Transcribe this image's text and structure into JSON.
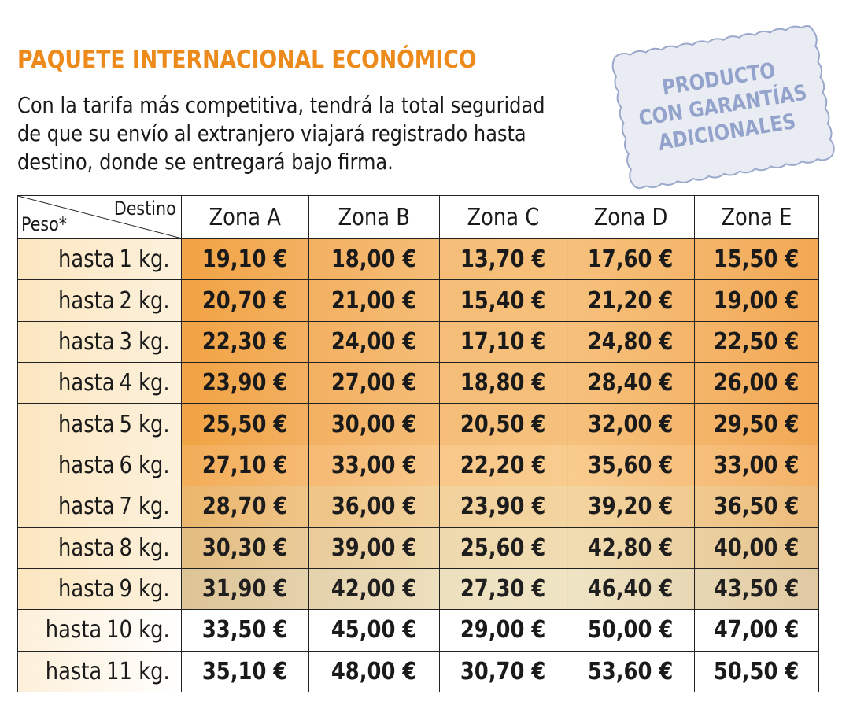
{
  "title": "PAQUETE INTERNACIONAL ECONÓMICO",
  "intro_lines": [
    "Con la tarifa más competitiva, tendrá la total seguridad",
    "de que su envío al extranjero viajará registrado hasta",
    "destino, donde se entregará bajo firma."
  ],
  "stamp": {
    "lines": [
      "PRODUCTO",
      "CON GARANTÍAS",
      "ADICIONALES"
    ],
    "color": "#8a9cc7"
  },
  "table": {
    "corner_top": "Destino",
    "corner_bottom": "Peso*",
    "columns": [
      "Zona A",
      "Zona B",
      "Zona C",
      "Zona D",
      "Zona E"
    ],
    "rows": [
      {
        "prefix": "hasta",
        "weight": "1 kg.",
        "prices": [
          "19,10 €",
          "18,00 €",
          "13,70 €",
          "17,60 €",
          "15,50 €"
        ]
      },
      {
        "prefix": "hasta",
        "weight": "2 kg.",
        "prices": [
          "20,70 €",
          "21,00 €",
          "15,40 €",
          "21,20 €",
          "19,00 €"
        ]
      },
      {
        "prefix": "hasta",
        "weight": "3 kg.",
        "prices": [
          "22,30 €",
          "24,00 €",
          "17,10 €",
          "24,80 €",
          "22,50 €"
        ]
      },
      {
        "prefix": "hasta",
        "weight": "4 kg.",
        "prices": [
          "23,90 €",
          "27,00 €",
          "18,80 €",
          "28,40 €",
          "26,00 €"
        ]
      },
      {
        "prefix": "hasta",
        "weight": "5 kg.",
        "prices": [
          "25,50 €",
          "30,00 €",
          "20,50 €",
          "32,00 €",
          "29,50 €"
        ]
      },
      {
        "prefix": "hasta",
        "weight": "6 kg.",
        "prices": [
          "27,10 €",
          "33,00 €",
          "22,20 €",
          "35,60 €",
          "33,00 €"
        ]
      },
      {
        "prefix": "hasta",
        "weight": "7 kg.",
        "prices": [
          "28,70 €",
          "36,00 €",
          "23,90 €",
          "39,20 €",
          "36,50 €"
        ]
      },
      {
        "prefix": "hasta",
        "weight": "8 kg.",
        "prices": [
          "30,30 €",
          "39,00 €",
          "25,60 €",
          "42,80 €",
          "40,00 €"
        ]
      },
      {
        "prefix": "hasta",
        "weight": "9 kg.",
        "prices": [
          "31,90 €",
          "42,00 €",
          "27,30 €",
          "46,40 €",
          "43,50 €"
        ]
      },
      {
        "prefix": "hasta",
        "weight": "10 kg.",
        "prices": [
          "33,50 €",
          "45,00 €",
          "29,00 €",
          "50,00 €",
          "47,00 €"
        ]
      },
      {
        "prefix": "hasta",
        "weight": "11 kg.",
        "prices": [
          "35,10 €",
          "48,00 €",
          "30,70 €",
          "53,60 €",
          "50,50 €"
        ]
      }
    ]
  },
  "colors": {
    "title": "#ec8a1b",
    "price_cells": "#f2a854",
    "weight_cells": "#fbe6c0"
  }
}
